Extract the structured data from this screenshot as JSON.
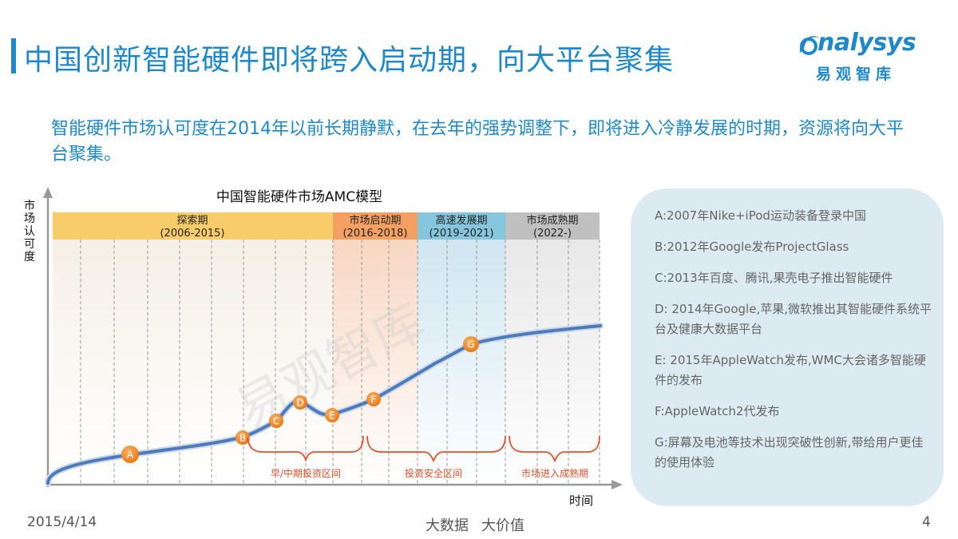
{
  "header": {
    "title": "中国创新智能硬件即将跨入启动期，向大平台聚集",
    "subtitle": "智能硬件市场认可度在2014年以前长期静默，在去年的强势调整下，即将进入冷静发展的时期，资源将向大平台聚集。"
  },
  "logo": {
    "brand": "Analysys",
    "brand_display": "nalysys",
    "name_cn": "易观智库"
  },
  "chart_data": {
    "type": "diagram",
    "title": "中国智能硬件市场AMC模型",
    "ylabel": "市场认可度",
    "xlabel": "时间",
    "watermark": "易观智库",
    "phases": [
      {
        "name": "探索期",
        "period": "(2006-2015)",
        "color": "#f9cc6b"
      },
      {
        "name": "市场启动期",
        "period": "(2016-2018)",
        "color": "#f4a062"
      },
      {
        "name": "高速发展期",
        "period": "(2019-2021)",
        "color": "#86c6dd"
      },
      {
        "name": "市场成熟期",
        "period": "(2022-)",
        "color": "#c0c0c0"
      }
    ],
    "zones": [
      "早/中期投资区间",
      "投资安全区间",
      "市场进入成熟期"
    ],
    "points": [
      "A",
      "B",
      "C",
      "D",
      "E",
      "F",
      "G"
    ]
  },
  "legend": {
    "items": [
      "A:2007年Nike+iPod运动装备登录中国",
      "B:2012年Google发布ProjectGlass",
      "C:2013年百度、腾讯,果壳电子推出智能硬件",
      "D: 2014年Google,苹果,微软推出其智能硬件系统平台及健康大数据平台",
      "E: 2015年AppleWatch发布,WMC大会诸多智能硬件的发布",
      "F:AppleWatch2代发布",
      "G:屏幕及电池等技术出现突破性创新,带给用户更佳的使用体验"
    ]
  },
  "footer": {
    "date": "2015/4/14",
    "slogan_1": "大数据",
    "slogan_2": "大价值",
    "page": "4"
  },
  "colors": {
    "accent": "#1e88c8",
    "curve": "#4a7bbd",
    "marker": "#f0821e",
    "bracket": "#e0502a"
  }
}
